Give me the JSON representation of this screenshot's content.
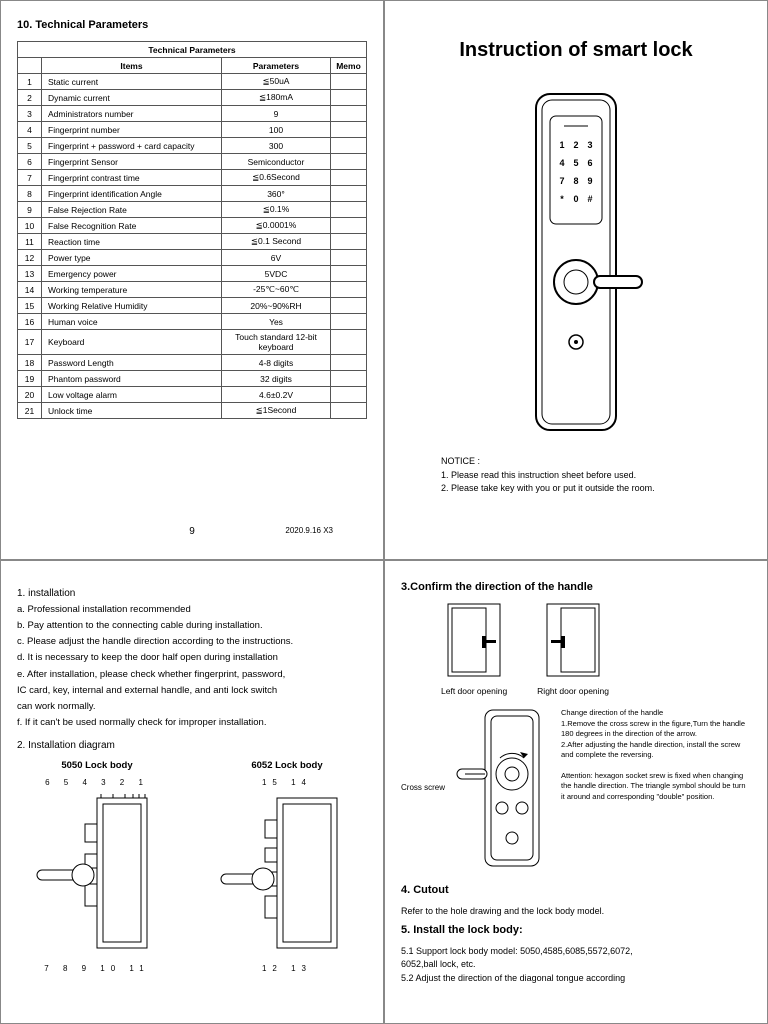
{
  "q1": {
    "title": "10.  Technical Parameters",
    "table_title": "Technical Parameters",
    "cols": [
      "",
      "Items",
      "Parameters",
      "Memo"
    ],
    "rows": [
      [
        "1",
        "Static current",
        "≦50uA",
        ""
      ],
      [
        "2",
        "Dynamic current",
        "≦180mA",
        ""
      ],
      [
        "3",
        "Administrators number",
        "9",
        ""
      ],
      [
        "4",
        "Fingerprint number",
        "100",
        ""
      ],
      [
        "5",
        "Fingerprint + password + card capacity",
        "300",
        ""
      ],
      [
        "6",
        "Fingerprint Sensor",
        "Semiconductor",
        ""
      ],
      [
        "7",
        "Fingerprint contrast time",
        "≦0.6Second",
        ""
      ],
      [
        "8",
        "Fingerprint identification Angle",
        "360°",
        ""
      ],
      [
        "9",
        "False Rejection Rate",
        "≦0.1%",
        ""
      ],
      [
        "10",
        "False Recognition Rate",
        "≦0.0001%",
        ""
      ],
      [
        "11",
        "Reaction time",
        "≦0.1 Second",
        ""
      ],
      [
        "12",
        "Power type",
        "6V",
        ""
      ],
      [
        "13",
        "Emergency power",
        "5VDC",
        ""
      ],
      [
        "14",
        "Working temperature",
        "-25℃~60℃",
        ""
      ],
      [
        "15",
        "Working Relative Humidity",
        "20%~90%RH",
        ""
      ],
      [
        "16",
        "Human voice",
        "Yes",
        ""
      ],
      [
        "17",
        "Keyboard",
        "Touch standard 12-bit keyboard",
        ""
      ],
      [
        "18",
        "Password Length",
        "4-8 digits",
        ""
      ],
      [
        "19",
        "Phantom password",
        "32 digits",
        ""
      ],
      [
        "20",
        "Low voltage alarm",
        "4.6±0.2V",
        ""
      ],
      [
        "21",
        "Unlock time",
        "≦1Second",
        ""
      ]
    ],
    "page_no": "9",
    "footer_date": "2020.9.16  X3"
  },
  "q2": {
    "title": "Instruction of smart lock",
    "keypad": [
      [
        "1",
        "2",
        "3"
      ],
      [
        "4",
        "5",
        "6"
      ],
      [
        "7",
        "8",
        "9"
      ],
      [
        "*",
        "0",
        "#"
      ]
    ],
    "notice_label": "NOTICE :",
    "notice_1": "1. Please read this instruction sheet before used.",
    "notice_2": "2. Please take key with you or put it outside the room."
  },
  "q3": {
    "s1_title": "1. installation",
    "s1_a": "a. Professional installation recommended",
    "s1_b": "b. Pay attention to the connecting cable during  installation.",
    "s1_c": "c. Please adjust the handle direction  according to the instructions.",
    "s1_d": "d. It is necessary to keep the door half  open during installation",
    "s1_e": "e. After installation, please check whether  fingerprint, password,",
    "s1_e2": "    IC card,  key,  internal and external handle, and anti lock  switch",
    "s1_e3": "    can work normally.",
    "s1_f": "f. If it can't be used normally check for  improper installation.",
    "s2_title": "2. Installation diagram",
    "lock_a": "5050 Lock body",
    "lock_a_top": "6  5    4    3 2 1",
    "lock_a_bot": "7                 8 9 10 11",
    "lock_b": "6052 Lock body",
    "lock_b_top": "15       14",
    "lock_b_bot": "12    13"
  },
  "q4": {
    "s3_title": "3.Confirm the direction of the handle",
    "door_left": "Left  door  opening",
    "door_right": "Right  door  opening",
    "cross_screw": "Cross screw",
    "htxt1": "Change direction of the handle\n1.Remove the cross screw in the figure,Turn the handle 180 degrees in the direction of the arrow.\n2.After adjusting the handle direction, install the screw and complete the reversing.",
    "htxt2": "Attention: hexagon socket srew is fixed when changing the handle direction. The triangle symbol should be turn it around and corresponding \"double\" position.",
    "s4_title": "4. Cutout",
    "s4_body": "    Refer to the hole drawing and the lock body model.",
    "s5_title": "5. Install the lock body:",
    "s5_1": "5.1 Support lock body model: 5050,4585,6085,5572,6072,",
    "s5_1b": "       6052,ball lock, etc.",
    "s5_2": "5.2  Adjust the direction of the diagonal tongue  according"
  }
}
